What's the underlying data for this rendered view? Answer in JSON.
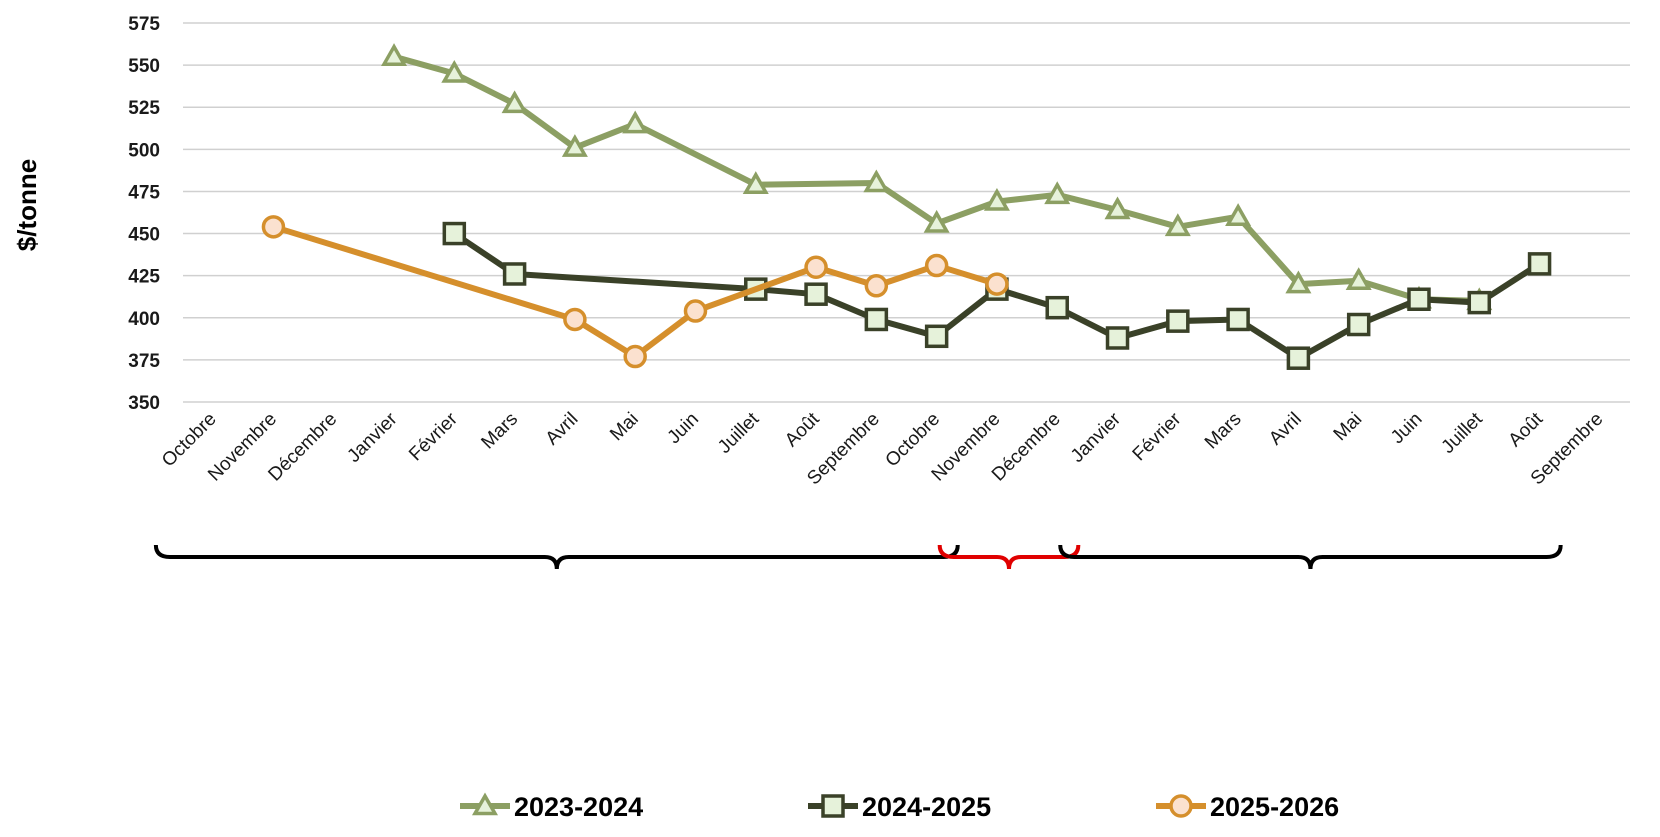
{
  "chart_data": {
    "type": "line",
    "title": "",
    "xlabel": "",
    "ylabel": "$/tonne",
    "ylim": [
      350,
      575
    ],
    "yticks": [
      "575",
      "550",
      "525",
      "500",
      "475",
      "450",
      "425",
      "400",
      "375",
      "350"
    ],
    "categories": [
      "Octobre",
      "Novembre",
      "Décembre",
      "Janvier",
      "Février",
      "Mars",
      "Avril",
      "Mai",
      "Juin",
      "Juillet",
      "Août",
      "Septembre",
      "Octobre",
      "Novembre",
      "Décembre",
      "Janvier",
      "Février",
      "Mars",
      "Avril",
      "Mai",
      "Juin",
      "Juillet",
      "Août",
      "Septembre"
    ],
    "series": [
      {
        "name": "2023-2024",
        "color": "#8c9f63",
        "marker": "triangle",
        "values": [
          null,
          null,
          null,
          555,
          545,
          527,
          501,
          515,
          null,
          479,
          null,
          480,
          456,
          469,
          473,
          464,
          454,
          460,
          420,
          422,
          411,
          410,
          null,
          null
        ]
      },
      {
        "name": "2024-2025",
        "color": "#3a4128",
        "marker": "square",
        "values": [
          null,
          null,
          null,
          null,
          450,
          426,
          null,
          null,
          null,
          417,
          414,
          399,
          389,
          417,
          406,
          388,
          398,
          399,
          376,
          396,
          411,
          409,
          432,
          null
        ]
      },
      {
        "name": "2025-2026",
        "color": "#d58f2c",
        "marker": "circle",
        "values": [
          null,
          454,
          null,
          null,
          null,
          null,
          399,
          377,
          404,
          null,
          430,
          419,
          431,
          420,
          null,
          null,
          null,
          null,
          null,
          null,
          null,
          null,
          null,
          null
        ]
      }
    ],
    "legend_position": "bottom",
    "grid": true,
    "annotations": [
      {
        "type": "brace",
        "color": "#000000",
        "from": "Octobre",
        "to": "Octobre"
      },
      {
        "type": "brace",
        "color": "#e00000",
        "from": "Novembre",
        "to": "Décembre"
      },
      {
        "type": "brace",
        "color": "#000000",
        "from": "Janvier",
        "to": "Août"
      }
    ]
  }
}
